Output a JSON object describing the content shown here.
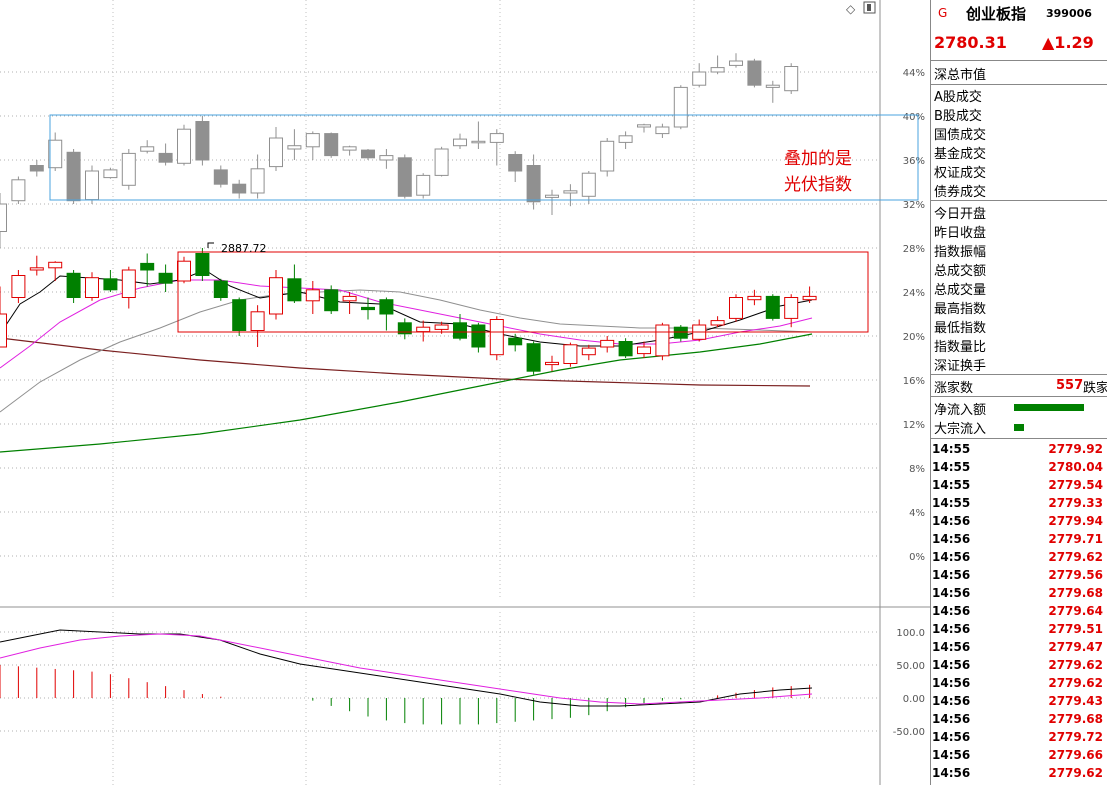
{
  "header": {
    "g_mark": "G",
    "name": "创业板指",
    "code": "399006",
    "price": "2780.31",
    "change": "▲1.29"
  },
  "labels": {
    "block1": [
      "深总市值"
    ],
    "block2": [
      "A股成交",
      "B股成交",
      "国债成交",
      "基金成交",
      "权证成交",
      "债券成交"
    ],
    "block3": [
      "今日开盘",
      "昨日收盘",
      "指数振幅",
      "总成交额",
      "总成交量",
      "最高指数",
      "最低指数",
      "指数量比",
      "深证换手"
    ]
  },
  "rise": {
    "label": "涨家数",
    "value": "557",
    "tail": "跌家"
  },
  "flows": [
    {
      "label": "净流入额",
      "bar_fraction": 1.0,
      "color": "#008000"
    },
    {
      "label": "大宗流入",
      "bar_fraction": 0.14,
      "color": "#008000"
    }
  ],
  "ticks": [
    {
      "t": "14:55",
      "p": "2779.92"
    },
    {
      "t": "14:55",
      "p": "2780.04"
    },
    {
      "t": "14:55",
      "p": "2779.54"
    },
    {
      "t": "14:55",
      "p": "2779.33"
    },
    {
      "t": "14:56",
      "p": "2779.94"
    },
    {
      "t": "14:56",
      "p": "2779.71"
    },
    {
      "t": "14:56",
      "p": "2779.62"
    },
    {
      "t": "14:56",
      "p": "2779.56"
    },
    {
      "t": "14:56",
      "p": "2779.68"
    },
    {
      "t": "14:56",
      "p": "2779.64"
    },
    {
      "t": "14:56",
      "p": "2779.51"
    },
    {
      "t": "14:56",
      "p": "2779.47"
    },
    {
      "t": "14:56",
      "p": "2779.62"
    },
    {
      "t": "14:56",
      "p": "2779.62"
    },
    {
      "t": "14:56",
      "p": "2779.43"
    },
    {
      "t": "14:56",
      "p": "2779.68"
    },
    {
      "t": "14:56",
      "p": "2779.72"
    },
    {
      "t": "14:56",
      "p": "2779.66"
    },
    {
      "t": "14:56",
      "p": "2779.62"
    }
  ],
  "chart_data": {
    "type": "candlestick",
    "y_axis_labels": [
      "44%",
      "40%",
      "36%",
      "32%",
      "28%",
      "24%",
      "20%",
      "16%",
      "12%",
      "8%",
      "4%",
      "0%"
    ],
    "y_axis_values": [
      44,
      40,
      36,
      32,
      28,
      24,
      20,
      16,
      12,
      8,
      4,
      0
    ],
    "high_annotation": "2887.72",
    "overlay_text": [
      "叠加的是",
      "光伏指数"
    ],
    "colors": {
      "up": "#e00000",
      "down": "#008000",
      "overlay": "#909090",
      "overlay_box": "#4aa3df",
      "main_box": "#e00000"
    },
    "overlay_candles": [
      {
        "o": 29.5,
        "c": 32.0,
        "h": 33.0,
        "l": 28.0
      },
      {
        "o": 32.3,
        "c": 34.2,
        "h": 34.5,
        "l": 32.0
      },
      {
        "o": 35.5,
        "c": 35.0,
        "h": 36.0,
        "l": 34.5
      },
      {
        "o": 35.3,
        "c": 37.8,
        "h": 38.5,
        "l": 35.0
      },
      {
        "o": 36.7,
        "c": 32.3,
        "h": 37.0,
        "l": 32.0
      },
      {
        "o": 32.4,
        "c": 35.0,
        "h": 35.5,
        "l": 32.0
      },
      {
        "o": 34.4,
        "c": 35.1,
        "h": 35.3,
        "l": 34.3
      },
      {
        "o": 33.7,
        "c": 36.6,
        "h": 37.0,
        "l": 33.3
      },
      {
        "o": 36.8,
        "c": 37.2,
        "h": 37.8,
        "l": 36.6
      },
      {
        "o": 36.6,
        "c": 35.8,
        "h": 37.5,
        "l": 35.5
      },
      {
        "o": 35.7,
        "c": 38.8,
        "h": 39.2,
        "l": 35.5
      },
      {
        "o": 39.5,
        "c": 36.0,
        "h": 40.0,
        "l": 35.5
      },
      {
        "o": 35.1,
        "c": 33.8,
        "h": 35.5,
        "l": 33.5
      },
      {
        "o": 33.8,
        "c": 33.0,
        "h": 34.2,
        "l": 32.5
      },
      {
        "o": 33.0,
        "c": 35.2,
        "h": 36.5,
        "l": 32.5
      },
      {
        "o": 35.4,
        "c": 38.0,
        "h": 39.0,
        "l": 35.0
      },
      {
        "o": 37.0,
        "c": 37.3,
        "h": 38.8,
        "l": 36.0
      },
      {
        "o": 37.2,
        "c": 38.4,
        "h": 38.6,
        "l": 36.0
      },
      {
        "o": 38.4,
        "c": 36.4,
        "h": 38.5,
        "l": 36.2
      },
      {
        "o": 36.9,
        "c": 37.2,
        "h": 37.3,
        "l": 36.4
      },
      {
        "o": 36.9,
        "c": 36.2,
        "h": 37.0,
        "l": 36.0
      },
      {
        "o": 36.0,
        "c": 36.4,
        "h": 37.0,
        "l": 35.2
      },
      {
        "o": 36.2,
        "c": 32.7,
        "h": 36.5,
        "l": 32.5
      },
      {
        "o": 32.8,
        "c": 34.6,
        "h": 34.8,
        "l": 32.5
      },
      {
        "o": 34.6,
        "c": 37.0,
        "h": 37.2,
        "l": 34.5
      },
      {
        "o": 37.3,
        "c": 37.9,
        "h": 38.4,
        "l": 37.0
      },
      {
        "o": 37.6,
        "c": 37.7,
        "h": 39.5,
        "l": 37.0
      },
      {
        "o": 37.6,
        "c": 38.4,
        "h": 38.8,
        "l": 35.5
      },
      {
        "o": 36.5,
        "c": 35.0,
        "h": 36.8,
        "l": 34.0
      },
      {
        "o": 35.5,
        "c": 32.2,
        "h": 36.5,
        "l": 31.5
      },
      {
        "o": 32.6,
        "c": 32.8,
        "h": 33.3,
        "l": 31.0
      },
      {
        "o": 33.0,
        "c": 33.2,
        "h": 33.8,
        "l": 31.8
      },
      {
        "o": 32.7,
        "c": 34.8,
        "h": 35.0,
        "l": 32.0
      },
      {
        "o": 35.0,
        "c": 37.7,
        "h": 38.0,
        "l": 34.5
      },
      {
        "o": 37.6,
        "c": 38.2,
        "h": 38.6,
        "l": 37.0
      },
      {
        "o": 39.0,
        "c": 39.2,
        "h": 39.3,
        "l": 38.5
      },
      {
        "o": 38.4,
        "c": 39.0,
        "h": 39.3,
        "l": 38.0
      },
      {
        "o": 39.0,
        "c": 42.6,
        "h": 42.8,
        "l": 38.8
      },
      {
        "o": 42.8,
        "c": 44.0,
        "h": 44.8,
        "l": 42.6
      },
      {
        "o": 44.0,
        "c": 44.4,
        "h": 45.5,
        "l": 43.8
      },
      {
        "o": 44.6,
        "c": 45.0,
        "h": 45.7,
        "l": 44.4
      },
      {
        "o": 45.0,
        "c": 42.8,
        "h": 45.2,
        "l": 42.6
      },
      {
        "o": 42.6,
        "c": 42.8,
        "h": 43.2,
        "l": 41.2
      },
      {
        "o": 42.3,
        "c": 44.5,
        "h": 44.8,
        "l": 42.0
      }
    ],
    "main_candles": [
      {
        "o": 19.0,
        "c": 22.0,
        "h": 24.5,
        "l": 19.0
      },
      {
        "o": 23.5,
        "c": 25.5,
        "h": 26.0,
        "l": 23.0
      },
      {
        "o": 26.0,
        "c": 26.2,
        "h": 27.3,
        "l": 25.5
      },
      {
        "o": 26.2,
        "c": 26.7,
        "h": 26.8,
        "l": 25.0
      },
      {
        "o": 25.7,
        "c": 23.5,
        "h": 26.0,
        "l": 23.0
      },
      {
        "o": 23.5,
        "c": 25.3,
        "h": 25.8,
        "l": 23.2
      },
      {
        "o": 25.2,
        "c": 24.2,
        "h": 26.0,
        "l": 24.0
      },
      {
        "o": 23.5,
        "c": 26.0,
        "h": 26.3,
        "l": 22.5
      },
      {
        "o": 26.6,
        "c": 26.0,
        "h": 27.5,
        "l": 24.5
      },
      {
        "o": 25.7,
        "c": 24.8,
        "h": 26.5,
        "l": 24.0
      },
      {
        "o": 25.0,
        "c": 26.8,
        "h": 27.2,
        "l": 24.8
      },
      {
        "o": 27.5,
        "c": 25.5,
        "h": 28.0,
        "l": 25.0
      },
      {
        "o": 25.0,
        "c": 23.5,
        "h": 25.2,
        "l": 23.2
      },
      {
        "o": 23.3,
        "c": 20.5,
        "h": 23.5,
        "l": 20.0
      },
      {
        "o": 20.5,
        "c": 22.2,
        "h": 22.8,
        "l": 19.0
      },
      {
        "o": 22.0,
        "c": 25.3,
        "h": 26.0,
        "l": 21.5
      },
      {
        "o": 25.2,
        "c": 23.2,
        "h": 26.5,
        "l": 23.0
      },
      {
        "o": 23.2,
        "c": 24.2,
        "h": 25.0,
        "l": 22.0
      },
      {
        "o": 24.2,
        "c": 22.3,
        "h": 24.6,
        "l": 22.0
      },
      {
        "o": 23.2,
        "c": 23.6,
        "h": 24.0,
        "l": 22.0
      },
      {
        "o": 22.6,
        "c": 22.4,
        "h": 23.5,
        "l": 21.5
      },
      {
        "o": 23.3,
        "c": 22.0,
        "h": 23.5,
        "l": 20.5
      },
      {
        "o": 21.2,
        "c": 20.2,
        "h": 21.6,
        "l": 19.7
      },
      {
        "o": 20.4,
        "c": 20.8,
        "h": 21.4,
        "l": 19.5
      },
      {
        "o": 20.6,
        "c": 21.0,
        "h": 21.3,
        "l": 20.2
      },
      {
        "o": 21.2,
        "c": 19.8,
        "h": 22.0,
        "l": 19.6
      },
      {
        "o": 21.0,
        "c": 19.0,
        "h": 21.2,
        "l": 18.5
      },
      {
        "o": 18.3,
        "c": 21.5,
        "h": 21.8,
        "l": 17.8
      },
      {
        "o": 19.8,
        "c": 19.2,
        "h": 20.2,
        "l": 18.6
      },
      {
        "o": 19.3,
        "c": 16.8,
        "h": 19.5,
        "l": 16.5
      },
      {
        "o": 17.4,
        "c": 17.6,
        "h": 18.2,
        "l": 16.8
      },
      {
        "o": 17.5,
        "c": 19.2,
        "h": 19.4,
        "l": 17.2
      },
      {
        "o": 18.3,
        "c": 18.9,
        "h": 19.2,
        "l": 17.8
      },
      {
        "o": 19.0,
        "c": 19.6,
        "h": 20.0,
        "l": 18.5
      },
      {
        "o": 19.5,
        "c": 18.2,
        "h": 19.8,
        "l": 18.0
      },
      {
        "o": 18.4,
        "c": 19.0,
        "h": 19.5,
        "l": 18.0
      },
      {
        "o": 18.2,
        "c": 21.0,
        "h": 21.2,
        "l": 17.8
      },
      {
        "o": 20.8,
        "c": 19.8,
        "h": 21.0,
        "l": 19.5
      },
      {
        "o": 19.7,
        "c": 21.0,
        "h": 21.5,
        "l": 19.5
      },
      {
        "o": 21.0,
        "c": 21.4,
        "h": 21.8,
        "l": 20.8
      },
      {
        "o": 21.6,
        "c": 23.5,
        "h": 23.8,
        "l": 21.3
      },
      {
        "o": 23.3,
        "c": 23.6,
        "h": 24.2,
        "l": 22.8
      },
      {
        "o": 23.6,
        "c": 21.6,
        "h": 23.8,
        "l": 21.4
      },
      {
        "o": 21.6,
        "c": 23.5,
        "h": 23.8,
        "l": 20.8
      },
      {
        "o": 23.3,
        "c": 23.6,
        "h": 24.5,
        "l": 23.0
      }
    ],
    "macd_axis_labels": [
      "100.0",
      "50.00",
      "0.00",
      "-50.00"
    ],
    "macd_axis_values": [
      100,
      50,
      0,
      -50
    ]
  }
}
